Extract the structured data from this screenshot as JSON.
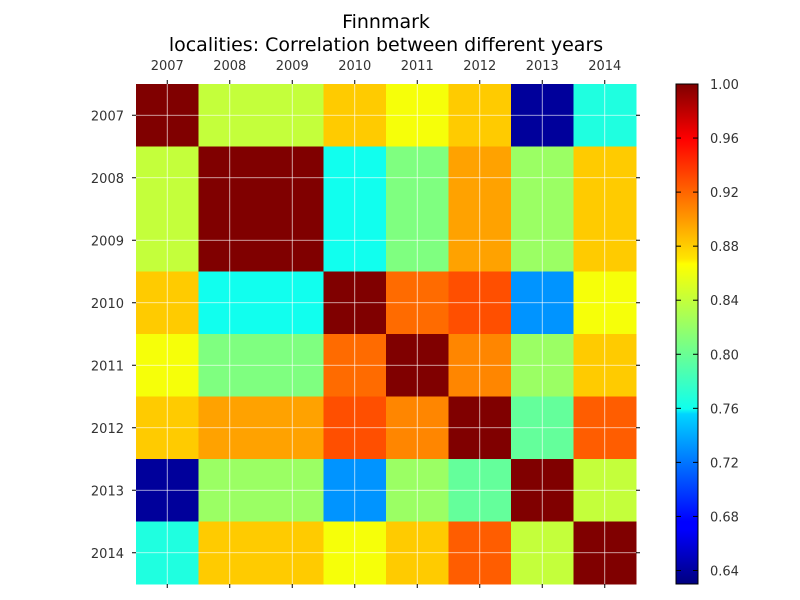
{
  "chart_data": {
    "type": "heatmap",
    "title": "Finnmark",
    "subtitle": "localities: Correlation between different years",
    "x_categories": [
      "2007",
      "2008",
      "2009",
      "2010",
      "2011",
      "2012",
      "2013",
      "2014"
    ],
    "y_categories": [
      "2007",
      "2008",
      "2009",
      "2010",
      "2011",
      "2012",
      "2013",
      "2014"
    ],
    "values": [
      [
        1.0,
        0.84,
        0.84,
        0.88,
        0.858,
        0.88,
        0.64,
        0.78
      ],
      [
        0.84,
        1.0,
        1.0,
        0.775,
        0.815,
        0.895,
        0.825,
        0.88
      ],
      [
        0.84,
        1.0,
        1.0,
        0.775,
        0.815,
        0.895,
        0.825,
        0.88
      ],
      [
        0.88,
        0.775,
        0.775,
        1.0,
        0.915,
        0.925,
        0.73,
        0.858
      ],
      [
        0.858,
        0.815,
        0.815,
        0.915,
        1.0,
        0.905,
        0.825,
        0.88
      ],
      [
        0.88,
        0.895,
        0.895,
        0.925,
        0.905,
        1.0,
        0.805,
        0.92
      ],
      [
        0.64,
        0.825,
        0.825,
        0.73,
        0.825,
        0.805,
        1.0,
        0.84
      ],
      [
        0.78,
        0.88,
        0.88,
        0.858,
        0.88,
        0.92,
        0.84,
        1.0
      ]
    ],
    "colorbar": {
      "min": 0.63,
      "max": 1.0,
      "ticks": [
        "1.00",
        "0.96",
        "0.92",
        "0.88",
        "0.84",
        "0.80",
        "0.76",
        "0.72",
        "0.68",
        "0.64"
      ],
      "tick_values": [
        1.0,
        0.96,
        0.92,
        0.88,
        0.84,
        0.8,
        0.76,
        0.72,
        0.68,
        0.64
      ],
      "colormap": "jet"
    },
    "grid": true,
    "x_ticks_position": "top"
  }
}
